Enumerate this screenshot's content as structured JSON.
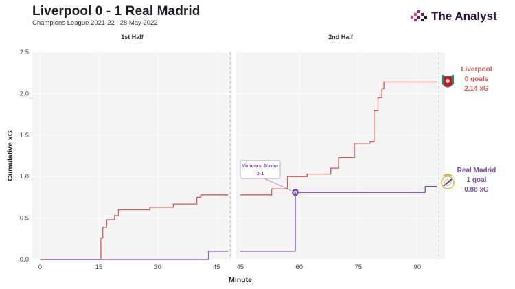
{
  "header": {
    "title": "Liverpool 0 - 1 Real Madrid",
    "subtitle": "Champions League 2021-22 | 28 May 2022",
    "brand": "The Analyst"
  },
  "colors": {
    "liverpool": "#d9534f",
    "real_madrid": "#7a4ab0",
    "grid": "#e9e9e9",
    "panel_bg": "#f4f4f4",
    "brand_bars": [
      "#e7318a",
      "#b02a7d",
      "#6c1a5a",
      "#2a0f3e"
    ]
  },
  "chart_data": {
    "type": "line",
    "step": true,
    "ylabel": "Cumulative xG",
    "xlabel": "Minute",
    "ylim": [
      0,
      2.5
    ],
    "yticks": [
      "0.0",
      "0.5",
      "1.0",
      "1.5",
      "2.0",
      "2.5"
    ],
    "grid": true,
    "panels": [
      {
        "title": "1st Half",
        "xlim": [
          -2,
          49
        ],
        "xticks": [
          "0",
          "15",
          "30",
          "45"
        ],
        "end_minute": 48.5
      },
      {
        "title": "2nd Half",
        "xlim": [
          44,
          97
        ],
        "xticks": [
          "45",
          "60",
          "75",
          "90"
        ],
        "end_minute": 95.5
      }
    ],
    "series": [
      {
        "name": "Liverpool",
        "first_half": [
          [
            0,
            0
          ],
          [
            15.5,
            0
          ],
          [
            15.5,
            0.26
          ],
          [
            16,
            0.26
          ],
          [
            16,
            0.39
          ],
          [
            17,
            0.39
          ],
          [
            17,
            0.48
          ],
          [
            19,
            0.48
          ],
          [
            19,
            0.53
          ],
          [
            20,
            0.53
          ],
          [
            20,
            0.6
          ],
          [
            28,
            0.6
          ],
          [
            28,
            0.63
          ],
          [
            34,
            0.63
          ],
          [
            34,
            0.67
          ],
          [
            40,
            0.67
          ],
          [
            40,
            0.75
          ],
          [
            41,
            0.75
          ],
          [
            41,
            0.78
          ],
          [
            48,
            0.78
          ]
        ],
        "second_half": [
          [
            45,
            0.78
          ],
          [
            53,
            0.78
          ],
          [
            53,
            0.85
          ],
          [
            57,
            0.85
          ],
          [
            57,
            1.0
          ],
          [
            62,
            1.0
          ],
          [
            62,
            1.03
          ],
          [
            68,
            1.03
          ],
          [
            68,
            1.1
          ],
          [
            70,
            1.1
          ],
          [
            70,
            1.23
          ],
          [
            74,
            1.23
          ],
          [
            74,
            1.4
          ],
          [
            78,
            1.4
          ],
          [
            78,
            1.42
          ],
          [
            79,
            1.42
          ],
          [
            79,
            1.8
          ],
          [
            80,
            1.8
          ],
          [
            80,
            1.95
          ],
          [
            81,
            1.95
          ],
          [
            81,
            2.06
          ],
          [
            81.5,
            2.06
          ],
          [
            81.5,
            2.14
          ],
          [
            95,
            2.14
          ]
        ]
      },
      {
        "name": "Real Madrid",
        "first_half": [
          [
            0,
            0
          ],
          [
            43,
            0
          ],
          [
            43,
            0.1
          ],
          [
            48,
            0.1
          ]
        ],
        "second_half": [
          [
            45,
            0.1
          ],
          [
            59,
            0.1
          ],
          [
            59,
            0.81
          ],
          [
            92,
            0.81
          ],
          [
            92,
            0.88
          ],
          [
            95,
            0.88
          ]
        ]
      }
    ],
    "goals": [
      {
        "team": "Real Madrid",
        "minute": 59,
        "xg": 0.81,
        "label_line1": "Vinicius Júnior",
        "label_line2": "0-1",
        "marker": "G"
      }
    ],
    "end_labels": [
      {
        "team": "Liverpool",
        "line1": "Liverpool",
        "line2": "0 goals",
        "line3": "2.14 xG",
        "icon": "liverpool-crest-icon"
      },
      {
        "team": "Real Madrid",
        "line1": "Real Madrid",
        "line2": "1 goal",
        "line3": "0.88 xG",
        "icon": "real-madrid-crest-icon"
      }
    ]
  }
}
